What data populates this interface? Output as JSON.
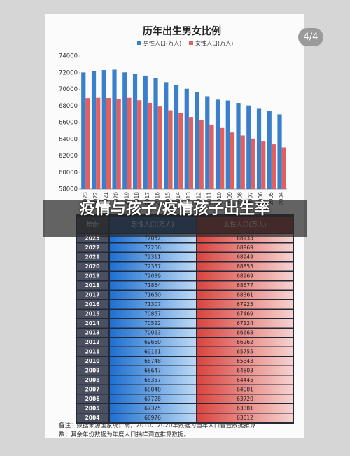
{
  "chart_data": {
    "type": "bar",
    "title": "历年出生男女比例",
    "categories": [
      "2023",
      "2022",
      "2021",
      "2020",
      "2019",
      "2018",
      "2017",
      "2016",
      "2015",
      "2014",
      "2013",
      "2012",
      "2011",
      "2010",
      "2009",
      "2008",
      "2007",
      "2006",
      "2005",
      "2004"
    ],
    "series": [
      {
        "name": "男性人口(万人)",
        "color": "#3a7fcc",
        "values": [
          72032,
          72206,
          72311,
          72357,
          72039,
          71864,
          71650,
          71307,
          70857,
          70522,
          70063,
          69660,
          69161,
          68748,
          68647,
          68357,
          68048,
          67728,
          67375,
          66976
        ]
      },
      {
        "name": "女性人口(万人)",
        "color": "#e06060",
        "values": [
          68935,
          68969,
          68949,
          68855,
          68969,
          68677,
          68361,
          67925,
          67469,
          67124,
          66663,
          66262,
          65755,
          65343,
          64803,
          64445,
          64081,
          63720,
          63381,
          63012
        ]
      }
    ],
    "ylim": [
      58000,
      74000
    ],
    "yticks": [
      58000,
      60000,
      62000,
      64000,
      66000,
      68000,
      70000,
      72000,
      74000
    ],
    "grid": false,
    "legend": "top"
  },
  "badge": "4/4",
  "overlay_title": "疫情与孩子/疫情孩子出生率",
  "table": {
    "year_header": "年份"
  },
  "note": "备注：数据来源国家统计局，2010、2020年数据为当年人口普查数据推算数；其余年份数据为年度人口抽样调查推算数据。"
}
